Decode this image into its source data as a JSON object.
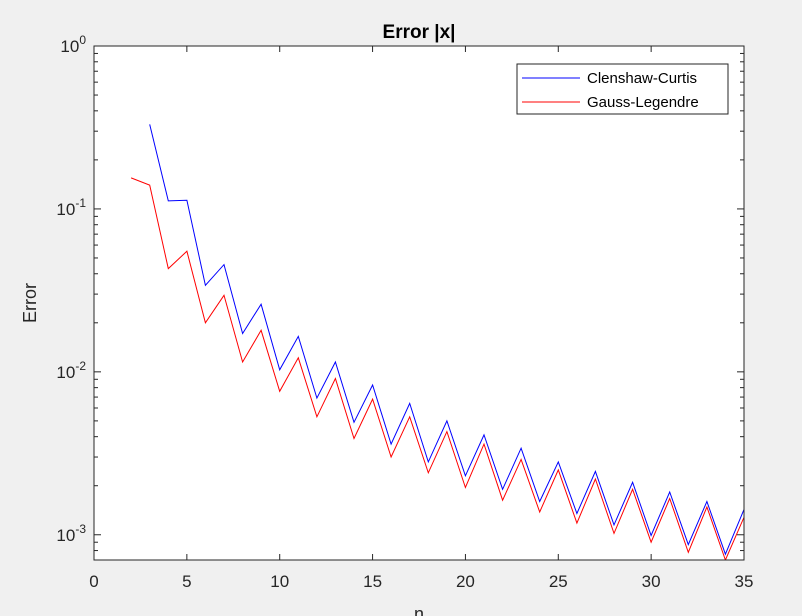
{
  "chart_data": {
    "type": "line",
    "title": "Error |x|",
    "xlabel": "n",
    "ylabel": "Error",
    "xlim": [
      0,
      35
    ],
    "ylim": [
      0.0007,
      1
    ],
    "yscale": "log",
    "grid": false,
    "legend_position": "top-right",
    "x_ticks": [
      0,
      5,
      10,
      15,
      20,
      25,
      30,
      35
    ],
    "y_ticks": [
      {
        "value": 0.001,
        "base": "10",
        "exp": "-3"
      },
      {
        "value": 0.01,
        "base": "10",
        "exp": "-2"
      },
      {
        "value": 0.1,
        "base": "10",
        "exp": "-1"
      },
      {
        "value": 1,
        "base": "10",
        "exp": "0"
      }
    ],
    "series": [
      {
        "name": "Clenshaw-Curtis",
        "color": "#0000ff",
        "x": [
          3,
          4,
          5,
          6,
          7,
          8,
          9,
          10,
          11,
          12,
          13,
          14,
          15,
          16,
          17,
          18,
          19,
          20,
          21,
          22,
          23,
          24,
          25,
          26,
          27,
          28,
          29,
          30,
          31,
          32,
          33,
          34,
          35
        ],
        "y": [
          0.33,
          0.112,
          0.113,
          0.034,
          0.0455,
          0.0172,
          0.026,
          0.0103,
          0.0165,
          0.0069,
          0.0115,
          0.0049,
          0.0083,
          0.0036,
          0.0064,
          0.0028,
          0.005,
          0.0023,
          0.0041,
          0.0019,
          0.0034,
          0.0016,
          0.0028,
          0.00135,
          0.00245,
          0.00115,
          0.0021,
          0.00099,
          0.00183,
          0.00087,
          0.0016,
          0.00076,
          0.00143
        ]
      },
      {
        "name": "Gauss-Legendre",
        "color": "#ff0000",
        "x": [
          2,
          3,
          4,
          5,
          6,
          7,
          8,
          9,
          10,
          11,
          12,
          13,
          14,
          15,
          16,
          17,
          18,
          19,
          20,
          21,
          22,
          23,
          24,
          25,
          26,
          27,
          28,
          29,
          30,
          31,
          32,
          33,
          34,
          35
        ],
        "y": [
          0.155,
          0.14,
          0.043,
          0.055,
          0.02,
          0.0295,
          0.0115,
          0.018,
          0.0076,
          0.0122,
          0.0053,
          0.0091,
          0.0039,
          0.0068,
          0.003,
          0.0053,
          0.0024,
          0.0043,
          0.00195,
          0.0036,
          0.00163,
          0.0029,
          0.00138,
          0.0025,
          0.00118,
          0.0022,
          0.00102,
          0.0019,
          0.0009,
          0.00167,
          0.00078,
          0.00148,
          0.0007,
          0.00128
        ]
      }
    ]
  }
}
